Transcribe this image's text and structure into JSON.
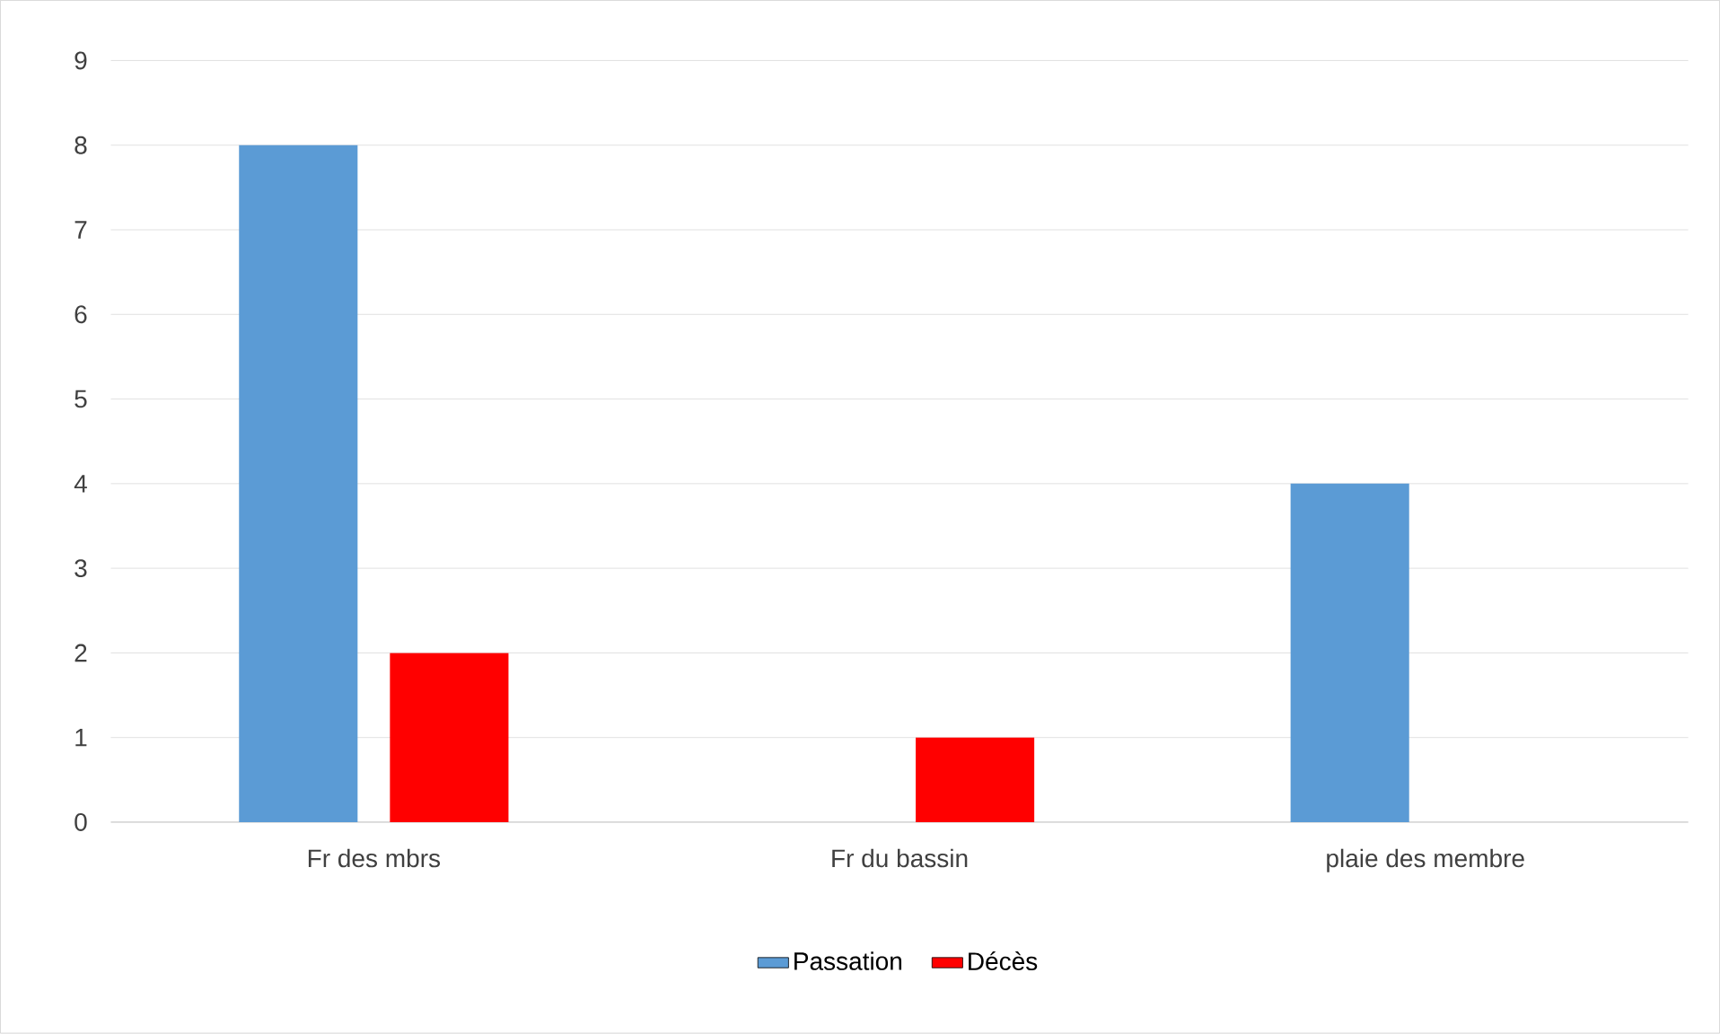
{
  "chart_data": {
    "type": "bar",
    "categories": [
      "Fr des mbrs",
      "Fr du bassin",
      "plaie des membre"
    ],
    "series": [
      {
        "name": "Passation",
        "color": "#5b9bd5",
        "values": [
          8,
          0,
          4
        ]
      },
      {
        "name": "Décès",
        "color": "#ff0000",
        "values": [
          2,
          1,
          0
        ]
      }
    ],
    "ylim": [
      0,
      9
    ],
    "yticks": [
      0,
      1,
      2,
      3,
      4,
      5,
      6,
      7,
      8,
      9
    ],
    "grid": "y",
    "legend": "bottom"
  }
}
